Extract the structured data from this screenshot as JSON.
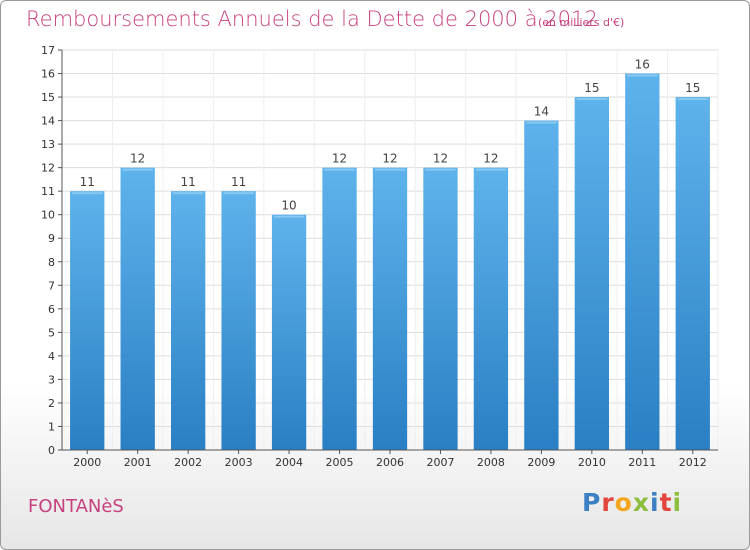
{
  "header": {
    "title": "Remboursements Annuels de la Dette de 2000 à 2012",
    "subtitle": "(en milliers d'€)"
  },
  "footer": {
    "commune": "FONTANèS",
    "logo": "Proxiti"
  },
  "colors": {
    "bar": "#2f8fd8",
    "bar_light": "#5fb3ec",
    "title": "#c7417e",
    "grid": "#dddddd"
  },
  "chart_data": {
    "type": "bar",
    "title": "Remboursements Annuels de la Dette de 2000 à 2012",
    "subtitle": "(en milliers d'€)",
    "categories": [
      "2000",
      "2001",
      "2002",
      "2003",
      "2004",
      "2005",
      "2006",
      "2007",
      "2008",
      "2009",
      "2010",
      "2011",
      "2012"
    ],
    "values": [
      11,
      12,
      11,
      11,
      10,
      12,
      12,
      12,
      12,
      14,
      15,
      16,
      15
    ],
    "ylim": [
      0,
      17
    ],
    "yticks": [
      0,
      1,
      2,
      3,
      4,
      5,
      6,
      7,
      8,
      9,
      10,
      11,
      12,
      13,
      14,
      15,
      16,
      17
    ],
    "grid": true,
    "show_value_labels": true
  }
}
